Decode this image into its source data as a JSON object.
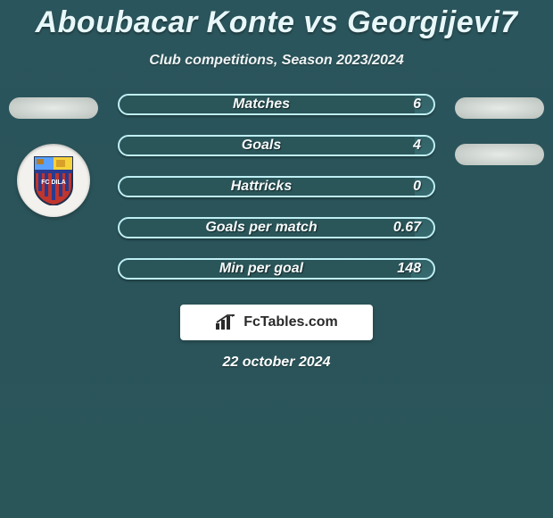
{
  "title": "Aboubacar Konte vs Georgijevi\u00107",
  "subtitle": "Club competitions, Season 2023/2024",
  "footer_date": "22 october 2024",
  "brand_text": "FcTables.com",
  "colors": {
    "bar_border": "#bfeff4",
    "bar_fill": "#6bc9d4",
    "shield_top_left": "#5aa0ff",
    "shield_top_right": "#f5d23a",
    "shield_body": "#c0352d",
    "shield_stripe": "#2a3b8f",
    "avatar_bg": "#e9ece8"
  },
  "stats": [
    {
      "label": "Matches",
      "value": "6",
      "fill_pct": 6
    },
    {
      "label": "Goals",
      "value": "4",
      "fill_pct": 6
    },
    {
      "label": "Hattricks",
      "value": "0",
      "fill_pct": 6
    },
    {
      "label": "Goals per match",
      "value": "0.67",
      "fill_pct": 6
    },
    {
      "label": "Min per goal",
      "value": "148",
      "fill_pct": 7
    }
  ],
  "left_side": {
    "has_avatar_placeholder": true,
    "has_club_badge": true
  },
  "right_side": {
    "avatar_placeholder_count": 2
  }
}
